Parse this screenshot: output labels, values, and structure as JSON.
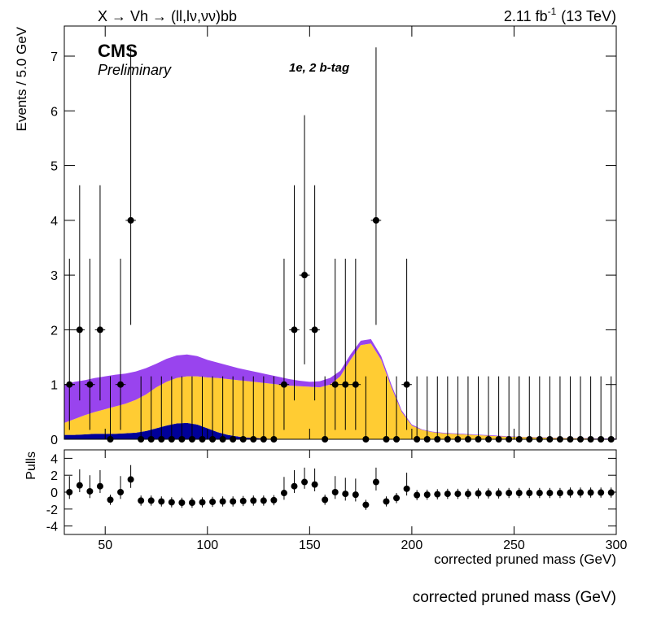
{
  "chart_data": [
    {
      "type": "histfit",
      "title": "X → Vh → (ll,lν,νν)bb",
      "lumi": "2.11 fb",
      "lumi_exponent": "-1",
      "energy": "(13 TeV)",
      "experiment": "CMS",
      "status": "Preliminary",
      "category_label": "1e, 2 b-tag",
      "y_label": "Events / 5.0 GeV",
      "xlim": [
        30,
        300
      ],
      "ylim": [
        0,
        7.55
      ],
      "xticks": [
        50,
        100,
        150,
        200,
        250,
        300
      ],
      "yticks": [
        0,
        1,
        2,
        3,
        4,
        5,
        6,
        7
      ],
      "x": [
        32.5,
        37.5,
        42.5,
        47.5,
        52.5,
        57.5,
        62.5,
        67.5,
        72.5,
        77.5,
        82.5,
        87.5,
        92.5,
        97.5,
        102.5,
        107.5,
        112.5,
        117.5,
        122.5,
        127.5,
        132.5,
        137.5,
        142.5,
        147.5,
        152.5,
        157.5,
        162.5,
        167.5,
        172.5,
        177.5,
        182.5,
        187.5,
        192.5,
        197.5,
        202.5,
        207.5,
        212.5,
        217.5,
        222.5,
        227.5,
        232.5,
        237.5,
        242.5,
        247.5,
        252.5,
        257.5,
        262.5,
        267.5,
        272.5,
        277.5,
        282.5,
        287.5,
        292.5,
        297.5
      ],
      "xerr": 2.5,
      "values": [
        1,
        2,
        1,
        2,
        0,
        1,
        4,
        0,
        0,
        0,
        0,
        0,
        0,
        0,
        0,
        0,
        0,
        0,
        0,
        0,
        0,
        1,
        2,
        3,
        2,
        0,
        1,
        1,
        1,
        0,
        4,
        0,
        0,
        1,
        0,
        0,
        0,
        0,
        0,
        0,
        0,
        0,
        0,
        0,
        0,
        0,
        0,
        0,
        0,
        0,
        0,
        0,
        0,
        0
      ],
      "yerr_low": [
        0.83,
        1.29,
        0.83,
        1.29,
        0,
        0.83,
        1.91,
        0,
        0,
        0,
        0,
        0,
        0,
        0,
        0,
        0,
        0,
        0,
        0,
        0,
        0,
        0.83,
        1.29,
        1.63,
        1.29,
        0,
        0.83,
        0.83,
        0.83,
        0,
        1.91,
        0,
        0,
        0.83,
        0,
        0,
        0,
        0,
        0,
        0,
        0,
        0,
        0,
        0,
        0,
        0,
        0,
        0,
        0,
        0,
        0,
        0,
        0,
        0
      ],
      "yerr_high": [
        2.3,
        2.64,
        2.3,
        2.64,
        1.15,
        2.3,
        3.16,
        1.15,
        1.15,
        1.15,
        1.15,
        1.15,
        1.15,
        1.15,
        1.15,
        1.15,
        1.15,
        1.15,
        1.15,
        1.15,
        1.15,
        2.3,
        2.64,
        2.92,
        2.64,
        1.15,
        2.3,
        2.3,
        2.3,
        1.15,
        3.16,
        1.15,
        1.15,
        2.3,
        1.15,
        1.15,
        1.15,
        1.15,
        1.15,
        1.15,
        1.15,
        1.15,
        1.15,
        1.15,
        1.15,
        1.15,
        1.15,
        1.15,
        1.15,
        1.15,
        1.15,
        1.15,
        1.15,
        1.15
      ],
      "background": {
        "x": [
          30,
          35,
          40,
          45,
          50,
          55,
          60,
          65,
          70,
          75,
          80,
          85,
          90,
          95,
          100,
          105,
          110,
          115,
          120,
          125,
          130,
          135,
          140,
          145,
          150,
          155,
          160,
          165,
          170,
          175,
          180,
          185,
          190,
          195,
          200,
          205,
          210,
          215,
          220,
          225,
          230,
          235,
          240,
          245,
          250,
          255,
          260,
          265,
          270,
          275,
          280,
          285,
          290,
          295,
          300
        ],
        "series": [
          {
            "color": "#000099",
            "values": [
              0.08,
              0.08,
              0.09,
              0.1,
              0.1,
              0.1,
              0.11,
              0.12,
              0.15,
              0.2,
              0.25,
              0.29,
              0.3,
              0.27,
              0.2,
              0.13,
              0.08,
              0.05,
              0.03,
              0.02,
              0.01,
              0.01,
              0.01,
              0,
              0,
              0,
              0,
              0,
              0,
              0,
              0,
              0,
              0,
              0,
              0,
              0,
              0,
              0,
              0,
              0,
              0,
              0,
              0,
              0,
              0,
              0,
              0,
              0,
              0,
              0,
              0,
              0,
              0,
              0,
              0
            ]
          },
          {
            "color": "#ffcc33",
            "values": [
              0.22,
              0.29,
              0.35,
              0.4,
              0.45,
              0.5,
              0.54,
              0.6,
              0.67,
              0.75,
              0.8,
              0.83,
              0.85,
              0.88,
              0.93,
              0.99,
              1.02,
              1.03,
              1.03,
              1.02,
              1.01,
              0.99,
              0.97,
              0.97,
              0.96,
              0.95,
              1.0,
              1.15,
              1.45,
              1.72,
              1.75,
              1.45,
              0.95,
              0.5,
              0.25,
              0.17,
              0.13,
              0.11,
              0.1,
              0.09,
              0.08,
              0.07,
              0.06,
              0.05,
              0.045,
              0.04,
              0.035,
              0.03,
              0.025,
              0.02,
              0.018,
              0.015,
              0.012,
              0.01,
              0.01
            ]
          },
          {
            "color": "#9944ee",
            "values": [
              0.7,
              0.68,
              0.64,
              0.62,
              0.6,
              0.58,
              0.55,
              0.52,
              0.48,
              0.43,
              0.42,
              0.41,
              0.4,
              0.37,
              0.32,
              0.28,
              0.25,
              0.22,
              0.2,
              0.18,
              0.16,
              0.14,
              0.12,
              0.1,
              0.09,
              0.11,
              0.12,
              0.1,
              0.1,
              0.08,
              0.08,
              0.07,
              0.05,
              0.03,
              0.02,
              0.01,
              0.01,
              0.01,
              0.01,
              0.01,
              0.01,
              0.01,
              0.01,
              0.01,
              0.005,
              0.005,
              0.005,
              0.005,
              0.005,
              0.005,
              0.005,
              0.005,
              0.005,
              0.005,
              0.005
            ]
          }
        ]
      }
    },
    {
      "type": "pulls",
      "y_label": "Pulls",
      "x_label": "corrected pruned mass (GeV)",
      "xlim": [
        30,
        300
      ],
      "ylim": [
        -5,
        5
      ],
      "xticks": [
        50,
        100,
        150,
        200,
        250,
        300
      ],
      "yticks": [
        -4,
        -2,
        0,
        2,
        4
      ],
      "x": [
        32.5,
        37.5,
        42.5,
        47.5,
        52.5,
        57.5,
        62.5,
        67.5,
        72.5,
        77.5,
        82.5,
        87.5,
        92.5,
        97.5,
        102.5,
        107.5,
        112.5,
        117.5,
        122.5,
        127.5,
        132.5,
        137.5,
        142.5,
        147.5,
        152.5,
        157.5,
        162.5,
        167.5,
        172.5,
        177.5,
        182.5,
        187.5,
        192.5,
        197.5,
        202.5,
        207.5,
        212.5,
        217.5,
        222.5,
        227.5,
        232.5,
        237.5,
        242.5,
        247.5,
        252.5,
        257.5,
        262.5,
        267.5,
        272.5,
        277.5,
        282.5,
        287.5,
        292.5,
        297.5
      ],
      "values": [
        0,
        0.8,
        0.1,
        0.7,
        -0.9,
        0,
        1.5,
        -1.0,
        -1.0,
        -1.1,
        -1.2,
        -1.25,
        -1.25,
        -1.2,
        -1.15,
        -1.1,
        -1.1,
        -1.05,
        -1.0,
        -1.0,
        -0.95,
        -0.1,
        0.7,
        1.2,
        0.9,
        -0.9,
        0,
        -0.2,
        -0.3,
        -1.5,
        1.2,
        -1.1,
        -0.7,
        0.4,
        -0.35,
        -0.3,
        -0.25,
        -0.2,
        -0.2,
        -0.2,
        -0.15,
        -0.15,
        -0.15,
        -0.1,
        -0.1,
        -0.1,
        -0.1,
        -0.1,
        -0.1,
        -0.05,
        -0.05,
        -0.05,
        -0.05,
        -0.05
      ],
      "yerr_low": [
        0.8,
        0.8,
        0.8,
        0.8,
        0.6,
        0.8,
        1.0,
        0.6,
        0.6,
        0.6,
        0.6,
        0.6,
        0.6,
        0.6,
        0.6,
        0.6,
        0.6,
        0.6,
        0.6,
        0.6,
        0.6,
        0.8,
        0.8,
        0.8,
        0.8,
        0.6,
        0.8,
        0.8,
        0.8,
        0.6,
        1.0,
        0.6,
        0.6,
        0.8,
        0.6,
        0.6,
        0.6,
        0.6,
        0.6,
        0.6,
        0.6,
        0.6,
        0.6,
        0.6,
        0.6,
        0.6,
        0.6,
        0.6,
        0.6,
        0.6,
        0.6,
        0.6,
        0.6,
        0.6
      ],
      "yerr_high": [
        1.9,
        1.9,
        1.9,
        1.9,
        0.6,
        1.9,
        1.7,
        0.6,
        0.6,
        0.6,
        0.6,
        0.6,
        0.6,
        0.6,
        0.6,
        0.6,
        0.6,
        0.6,
        0.6,
        0.6,
        0.6,
        1.9,
        1.9,
        1.7,
        1.9,
        0.6,
        1.9,
        1.9,
        1.9,
        0.6,
        1.7,
        0.6,
        0.6,
        1.9,
        0.6,
        0.6,
        0.6,
        0.6,
        0.6,
        0.6,
        0.6,
        0.6,
        0.6,
        0.6,
        0.6,
        0.6,
        0.6,
        0.6,
        0.6,
        0.6,
        0.6,
        0.6,
        0.6,
        0.6
      ]
    }
  ],
  "footer_label": "corrected pruned mass (GeV)"
}
